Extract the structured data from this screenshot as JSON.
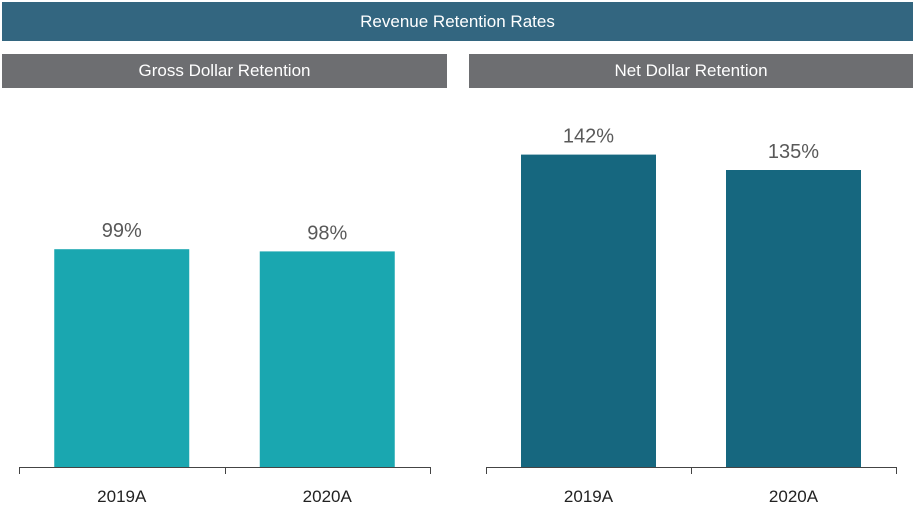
{
  "title": "Revenue Retention Rates",
  "chart_data": [
    {
      "type": "bar",
      "title": "Gross Dollar Retention",
      "categories": [
        "2019A",
        "2020A"
      ],
      "values": [
        99,
        98
      ],
      "data_labels": [
        "99%",
        "98%"
      ],
      "color": "#1aa7b0",
      "ylim": [
        0,
        150
      ],
      "grid": false
    },
    {
      "type": "bar",
      "title": "Net Dollar Retention",
      "categories": [
        "2019A",
        "2020A"
      ],
      "values": [
        142,
        135
      ],
      "data_labels": [
        "142%",
        "135%"
      ],
      "color": "#16677f",
      "ylim": [
        0,
        150
      ],
      "grid": false
    }
  ],
  "colors": {
    "title_bg": "#336680",
    "subtitle_bg": "#6d6e71"
  }
}
